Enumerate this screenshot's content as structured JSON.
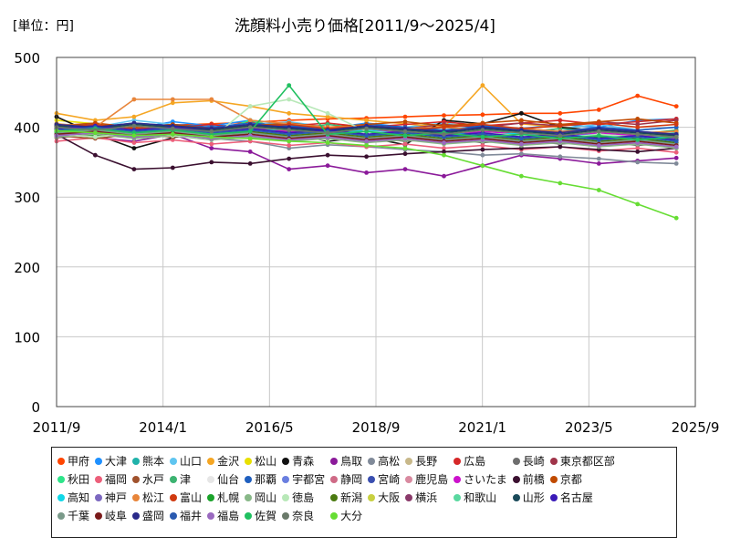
{
  "chart_data": {
    "type": "line",
    "title": "洗顔料小売り価格[2011/9～2025/4]",
    "unit_label": "[単位：円]",
    "xlabel": "",
    "ylabel": "",
    "x_range": [
      "2011-09",
      "2025-09"
    ],
    "x_ticks": [
      "2011/9",
      "2014/1",
      "2016/5",
      "2018/9",
      "2021/1",
      "2023/5",
      "2025/9"
    ],
    "ylim": [
      0,
      500
    ],
    "y_ticks": [
      0,
      100,
      200,
      300,
      400,
      500
    ],
    "grid": true,
    "legend_position": "bottom",
    "series": [
      {
        "name": "甲府",
        "color": "#ff4500",
        "values": [
          395,
          398,
          400,
          403,
          405,
          407,
          410,
          412,
          413,
          415,
          417,
          418,
          420,
          420,
          425,
          445,
          430
        ]
      },
      {
        "name": "大津",
        "color": "#1e90ff",
        "values": [
          400,
          405,
          398,
          408,
          402,
          410,
          404,
          398,
          406,
          400,
          395,
          402,
          398,
          404,
          400,
          410,
          412
        ]
      },
      {
        "name": "熊本",
        "color": "#20b2aa",
        "values": [
          395,
          390,
          398,
          393,
          400,
          396,
          392,
          398,
          394,
          390,
          396,
          392,
          388,
          394,
          390,
          386,
          392
        ]
      },
      {
        "name": "山口",
        "color": "#5fc5f0",
        "values": [
          405,
          400,
          410,
          404,
          396,
          402,
          408,
          400,
          394,
          400,
          406,
          398,
          392,
          398,
          404,
          396,
          400
        ]
      },
      {
        "name": "金沢",
        "color": "#f5a623",
        "values": [
          420,
          410,
          415,
          435,
          438,
          430,
          420,
          415,
          410,
          405,
          400,
          460,
          405,
          400,
          395,
          390,
          395
        ]
      },
      {
        "name": "松山",
        "color": "#e8e000",
        "values": [
          410,
          405,
          400,
          395,
          398,
          392,
          396,
          390,
          394,
          388,
          392,
          386,
          390,
          384,
          388,
          382,
          386
        ]
      },
      {
        "name": "青森",
        "color": "#111111",
        "values": [
          415,
          390,
          370,
          385,
          395,
          388,
          392,
          380,
          386,
          375,
          410,
          405,
          420,
          400,
          395,
          385,
          390
        ]
      },
      {
        "name": "鳥取",
        "color": "#8b1a9a",
        "values": [
          395,
          385,
          380,
          390,
          370,
          365,
          340,
          345,
          335,
          340,
          330,
          345,
          360,
          355,
          348,
          352,
          356
        ]
      },
      {
        "name": "高松",
        "color": "#808a99",
        "values": [
          390,
          395,
          388,
          392,
          384,
          380,
          370,
          375,
          372,
          368,
          365,
          360,
          362,
          358,
          355,
          350,
          348
        ]
      },
      {
        "name": "長野",
        "color": "#c8b88a",
        "values": [
          400,
          398,
          402,
          396,
          400,
          394,
          398,
          392,
          396,
          390,
          394,
          388,
          392,
          386,
          390,
          384,
          388
        ]
      },
      {
        "name": "広島",
        "color": "#d62728",
        "values": [
          398,
          402,
          396,
          400,
          404,
          398,
          402,
          406,
          400,
          404,
          408,
          402,
          406,
          410,
          404,
          408,
          412
        ]
      },
      {
        "name": "長崎",
        "color": "#6e6e6e",
        "values": [
          392,
          388,
          394,
          386,
          390,
          384,
          388,
          382,
          386,
          380,
          384,
          378,
          382,
          376,
          380,
          374,
          378
        ]
      },
      {
        "name": "東京都区部",
        "color": "#a0344a",
        "values": [
          385,
          390,
          395,
          392,
          398,
          394,
          400,
          396,
          402,
          398,
          404,
          400,
          406,
          402,
          408,
          404,
          410
        ]
      },
      {
        "name": "秋田",
        "color": "#2ee58a",
        "values": [
          395,
          400,
          392,
          398,
          390,
          410,
          395,
          388,
          394,
          386,
          392,
          384,
          390,
          382,
          388,
          380,
          386
        ]
      },
      {
        "name": "福岡",
        "color": "#ec5f7a",
        "values": [
          380,
          385,
          378,
          382,
          376,
          380,
          374,
          378,
          372,
          376,
          370,
          374,
          368,
          372,
          366,
          370,
          364
        ]
      },
      {
        "name": "水戸",
        "color": "#a0522d",
        "values": [
          388,
          384,
          390,
          386,
          392,
          388,
          384,
          390,
          386,
          382,
          388,
          384,
          380,
          386,
          382,
          378,
          384
        ]
      },
      {
        "name": "津",
        "color": "#3cb371",
        "values": [
          400,
          395,
          405,
          398,
          392,
          400,
          396,
          404,
          398,
          394,
          400,
          396,
          392,
          398,
          394,
          390,
          396
        ]
      },
      {
        "name": "仙台",
        "color": "#e6e6e6",
        "values": [
          390,
          386,
          392,
          388,
          384,
          390,
          386,
          382,
          388,
          384,
          380,
          386,
          382,
          378,
          384,
          380,
          376
        ]
      },
      {
        "name": "那覇",
        "color": "#1f5fbf",
        "values": [
          400,
          402,
          398,
          404,
          400,
          406,
          402,
          398,
          404,
          400,
          396,
          402,
          398,
          394,
          400,
          396,
          400
        ]
      },
      {
        "name": "宇都宮",
        "color": "#6a7fe0",
        "values": [
          396,
          400,
          394,
          398,
          392,
          396,
          390,
          394,
          388,
          392,
          386,
          390,
          384,
          388,
          382,
          386,
          380
        ]
      },
      {
        "name": "静岡",
        "color": "#cf6a86",
        "values": [
          388,
          392,
          386,
          390,
          384,
          388,
          382,
          386,
          380,
          384,
          378,
          382,
          376,
          380,
          374,
          378,
          372
        ]
      },
      {
        "name": "宮崎",
        "color": "#3a4fb0",
        "values": [
          404,
          400,
          406,
          402,
          398,
          404,
          400,
          396,
          402,
          398,
          394,
          400,
          396,
          392,
          398,
          394,
          390
        ]
      },
      {
        "name": "鹿児島",
        "color": "#d98aa0",
        "values": [
          392,
          396,
          390,
          394,
          388,
          392,
          386,
          390,
          384,
          388,
          382,
          386,
          380,
          384,
          378,
          382,
          376
        ]
      },
      {
        "name": "さいたま",
        "color": "#cc12cc",
        "values": [
          398,
          394,
          400,
          396,
          392,
          398,
          394,
          390,
          396,
          392,
          388,
          394,
          390,
          386,
          392,
          388,
          384
        ]
      },
      {
        "name": "前橋",
        "color": "#3b1030",
        "values": [
          390,
          360,
          340,
          342,
          350,
          348,
          355,
          360,
          358,
          362,
          365,
          368,
          370,
          372,
          368,
          365,
          370
        ]
      },
      {
        "name": "京都",
        "color": "#c04a00",
        "values": [
          402,
          406,
          400,
          404,
          398,
          402,
          406,
          400,
          404,
          408,
          402,
          406,
          410,
          404,
          408,
          412,
          406
        ]
      },
      {
        "name": "高知",
        "color": "#10d8e8",
        "values": [
          394,
          398,
          392,
          396,
          390,
          394,
          398,
          392,
          396,
          390,
          394,
          388,
          392,
          386,
          390,
          384,
          388
        ]
      },
      {
        "name": "神戸",
        "color": "#7c68c0",
        "values": [
          396,
          392,
          398,
          394,
          390,
          396,
          392,
          388,
          394,
          390,
          386,
          392,
          388,
          384,
          390,
          386,
          382
        ]
      },
      {
        "name": "松江",
        "color": "#e8853a",
        "values": [
          405,
          400,
          440,
          440,
          440,
          410,
          405,
          400,
          402,
          398,
          400,
          396,
          398,
          394,
          396,
          392,
          394
        ]
      },
      {
        "name": "富山",
        "color": "#d03a10",
        "values": [
          400,
          404,
          398,
          402,
          396,
          400,
          404,
          398,
          402,
          396,
          400,
          404,
          398,
          402,
          406,
          400,
          404
        ]
      },
      {
        "name": "札幌",
        "color": "#1aa32a",
        "values": [
          392,
          388,
          394,
          390,
          386,
          392,
          388,
          384,
          390,
          386,
          382,
          388,
          384,
          380,
          386,
          382,
          378
        ]
      },
      {
        "name": "岡山",
        "color": "#88b888",
        "values": [
          386,
          390,
          384,
          388,
          382,
          386,
          380,
          384,
          378,
          382,
          376,
          380,
          374,
          378,
          372,
          376,
          370
        ]
      },
      {
        "name": "徳島",
        "color": "#b8e8b8",
        "values": [
          390,
          386,
          392,
          388,
          384,
          430,
          440,
          420,
          394,
          390,
          386,
          392,
          388,
          384,
          390,
          386,
          382
        ]
      },
      {
        "name": "新潟",
        "color": "#4a7a10",
        "values": [
          394,
          398,
          392,
          396,
          390,
          394,
          388,
          392,
          386,
          390,
          384,
          388,
          382,
          386,
          380,
          384,
          378
        ]
      },
      {
        "name": "大阪",
        "color": "#c8d040",
        "values": [
          400,
          396,
          402,
          398,
          394,
          400,
          396,
          392,
          398,
          394,
          390,
          396,
          392,
          388,
          394,
          390,
          386
        ]
      },
      {
        "name": "横浜",
        "color": "#8a3a6a",
        "values": [
          388,
          392,
          386,
          390,
          384,
          388,
          382,
          386,
          380,
          384,
          378,
          382,
          376,
          380,
          374,
          378,
          372
        ]
      },
      {
        "name": "和歌山",
        "color": "#5ad8a0",
        "values": [
          396,
          400,
          394,
          398,
          392,
          396,
          390,
          394,
          388,
          392,
          386,
          390,
          384,
          388,
          382,
          386,
          380
        ]
      },
      {
        "name": "山形",
        "color": "#1a4a5a",
        "values": [
          402,
          398,
          404,
          400,
          396,
          402,
          398,
          394,
          400,
          396,
          392,
          398,
          394,
          390,
          396,
          392,
          388
        ]
      },
      {
        "name": "名古屋",
        "color": "#3a1ab8",
        "values": [
          398,
          402,
          396,
          400,
          394,
          398,
          392,
          396,
          390,
          394,
          388,
          392,
          386,
          390,
          384,
          388,
          382
        ]
      },
      {
        "name": "千葉",
        "color": "#7a9a8a",
        "values": [
          392,
          396,
          390,
          394,
          388,
          392,
          386,
          390,
          384,
          388,
          382,
          386,
          380,
          384,
          378,
          382,
          376
        ]
      },
      {
        "name": "岐阜",
        "color": "#7a1a1a",
        "values": [
          390,
          394,
          388,
          392,
          386,
          390,
          384,
          388,
          382,
          386,
          380,
          384,
          378,
          382,
          376,
          380,
          374
        ]
      },
      {
        "name": "盛岡",
        "color": "#2a2a8a",
        "values": [
          404,
          400,
          406,
          402,
          398,
          404,
          400,
          396,
          402,
          398,
          394,
          400,
          396,
          392,
          398,
          394,
          390
        ]
      },
      {
        "name": "福井",
        "color": "#2a5ab0",
        "values": [
          396,
          400,
          394,
          398,
          392,
          396,
          390,
          394,
          388,
          392,
          386,
          390,
          384,
          388,
          382,
          386,
          380
        ]
      },
      {
        "name": "福島",
        "color": "#9a6ac0",
        "values": [
          388,
          392,
          386,
          390,
          384,
          388,
          382,
          386,
          380,
          384,
          378,
          382,
          376,
          380,
          374,
          378,
          372
        ]
      },
      {
        "name": "佐賀",
        "color": "#20c060",
        "values": [
          394,
          398,
          392,
          396,
          390,
          394,
          460,
          390,
          394,
          388,
          392,
          386,
          390,
          384,
          388,
          382,
          386
        ]
      },
      {
        "name": "奈良",
        "color": "#6a7a6a",
        "values": [
          400,
          396,
          402,
          398,
          394,
          400,
          396,
          392,
          398,
          394,
          390,
          396,
          392,
          388,
          394,
          390,
          386
        ]
      },
      {
        "name": "大分",
        "color": "#66dd33",
        "values": [
          395,
          392,
          388,
          390,
          386,
          384,
          380,
          378,
          374,
          370,
          360,
          345,
          330,
          320,
          310,
          290,
          270
        ]
      }
    ]
  }
}
